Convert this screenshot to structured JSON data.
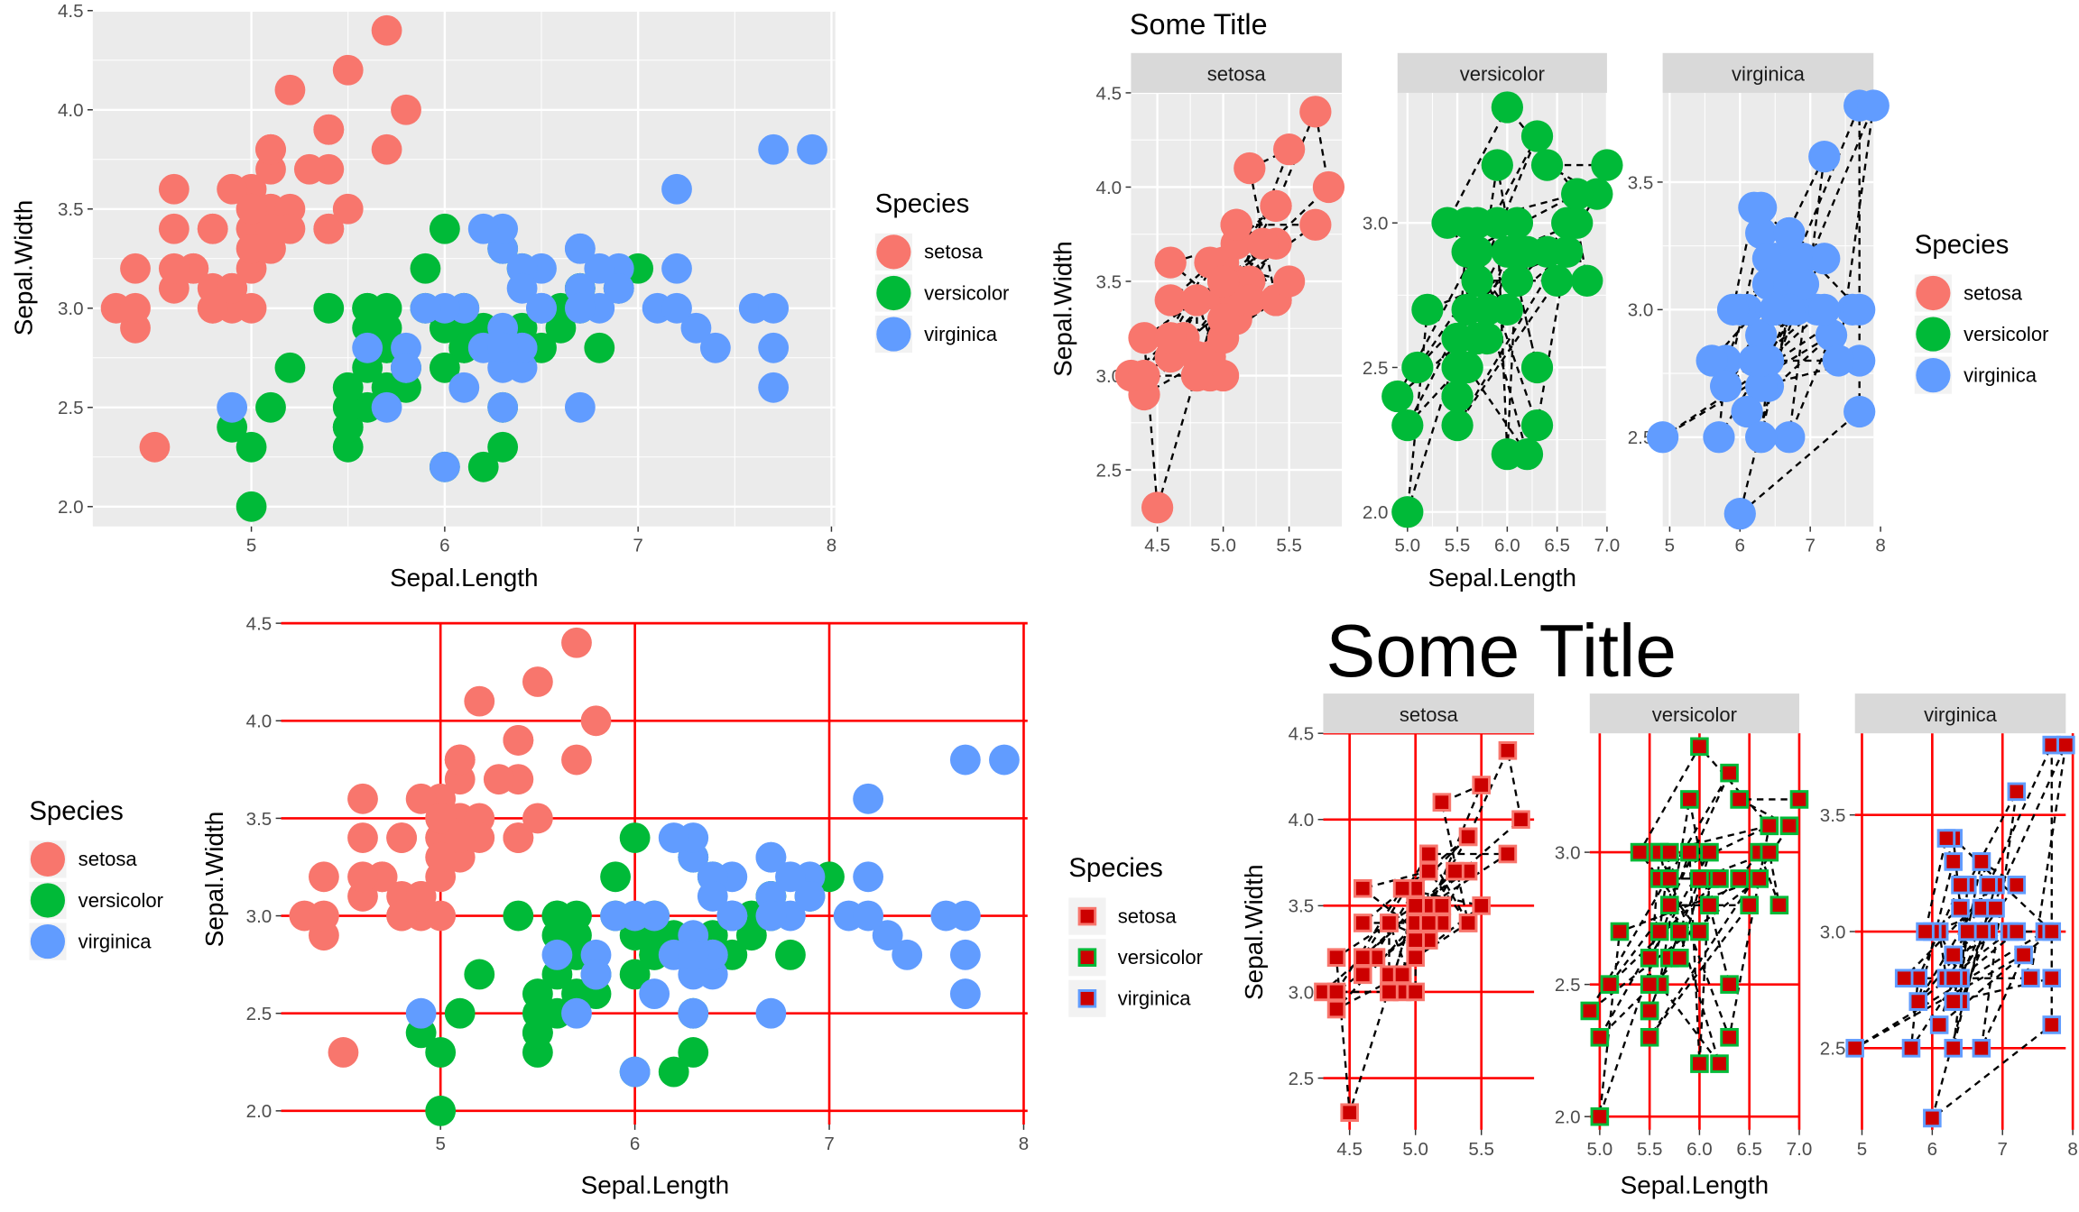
{
  "charts": [
    {
      "type": "scatter",
      "title": "",
      "xlabel": "Sepal.Length",
      "ylabel": "Sepal.Width",
      "xticks": [
        "5",
        "6",
        "7",
        "8"
      ],
      "yticks": [
        "2.0",
        "2.5",
        "3.0",
        "3.5",
        "4.0",
        "4.5"
      ],
      "legend_title": "Species",
      "legend_entries": [
        "setosa",
        "versicolor",
        "virginica"
      ],
      "grid_color": "#ffffff",
      "panel_background": "#ebebeb"
    },
    {
      "type": "scatter",
      "title": "Some Title",
      "facets": [
        "setosa",
        "versicolor",
        "virginica"
      ],
      "xlabel": "Sepal.Length",
      "ylabel": "Sepal.Width",
      "facet_xticks": [
        [
          "4.5",
          "5.0",
          "5.5"
        ],
        [
          "5.0",
          "5.5",
          "6.0",
          "6.5",
          "7.0"
        ],
        [
          "5",
          "6",
          "7",
          "8"
        ]
      ],
      "facet_yticks": [
        [
          "2.5",
          "3.0",
          "3.5",
          "4.0",
          "4.5"
        ],
        [
          "2.0",
          "2.5",
          "3.0"
        ],
        [
          "2.5",
          "3.0",
          "3.5"
        ]
      ],
      "legend_title": "Species",
      "legend_entries": [
        "setosa",
        "versicolor",
        "virginica"
      ],
      "connecting_line": "dashed black"
    },
    {
      "type": "scatter",
      "title": "",
      "xlabel": "Sepal.Length",
      "ylabel": "Sepal.Width",
      "xticks": [
        "5",
        "6",
        "7",
        "8"
      ],
      "yticks": [
        "2.0",
        "2.5",
        "3.0",
        "3.5",
        "4.0",
        "4.5"
      ],
      "legend_title": "Species",
      "legend_entries": [
        "setosa",
        "versicolor",
        "virginica"
      ],
      "second_legend_title": "Species",
      "second_legend_entries": [
        "setosa",
        "versicolor",
        "virginica"
      ],
      "grid_color": "#ff0000",
      "panel_background": "#ffffff"
    },
    {
      "type": "scatter",
      "title": "Some Title",
      "facets": [
        "setosa",
        "versicolor",
        "virginica"
      ],
      "xlabel": "Sepal.Length",
      "ylabel": "Sepal.Width",
      "facet_xticks": [
        [
          "4.5",
          "5.0",
          "5.5"
        ],
        [
          "5.0",
          "5.5",
          "6.0",
          "6.5",
          "7.0"
        ],
        [
          "5",
          "6",
          "7",
          "8"
        ]
      ],
      "facet_yticks": [
        [
          "2.5",
          "3.0",
          "3.5",
          "4.0",
          "4.5"
        ],
        [
          "2.0",
          "2.5",
          "3.0"
        ],
        [
          "2.5",
          "3.0",
          "3.5"
        ]
      ],
      "grid_color": "#ff0000",
      "marker": "square",
      "marker_fill": "#cc0000",
      "connecting_line": "dashed black"
    }
  ],
  "colors": {
    "setosa": "#f8766d",
    "versicolor": "#00ba38",
    "virginica": "#619cff",
    "grid_red": "#ff0000",
    "square_fill": "#cc0000",
    "strip": "#d9d9d9"
  },
  "chart_data": {
    "type": "scatter",
    "series": [
      {
        "name": "setosa",
        "points": [
          [
            5.1,
            3.5
          ],
          [
            4.9,
            3.0
          ],
          [
            4.7,
            3.2
          ],
          [
            4.6,
            3.1
          ],
          [
            5.0,
            3.6
          ],
          [
            5.4,
            3.9
          ],
          [
            4.6,
            3.4
          ],
          [
            5.0,
            3.4
          ],
          [
            4.4,
            2.9
          ],
          [
            4.9,
            3.1
          ],
          [
            5.4,
            3.7
          ],
          [
            4.8,
            3.4
          ],
          [
            4.8,
            3.0
          ],
          [
            4.3,
            3.0
          ],
          [
            5.8,
            4.0
          ],
          [
            5.7,
            4.4
          ],
          [
            5.4,
            3.9
          ],
          [
            5.1,
            3.5
          ],
          [
            5.7,
            3.8
          ],
          [
            5.1,
            3.8
          ],
          [
            5.4,
            3.4
          ],
          [
            5.1,
            3.7
          ],
          [
            4.6,
            3.6
          ],
          [
            5.1,
            3.3
          ],
          [
            4.8,
            3.4
          ],
          [
            5.0,
            3.0
          ],
          [
            5.0,
            3.4
          ],
          [
            5.2,
            3.5
          ],
          [
            5.2,
            3.4
          ],
          [
            4.7,
            3.2
          ],
          [
            4.8,
            3.1
          ],
          [
            5.4,
            3.4
          ],
          [
            5.2,
            4.1
          ],
          [
            5.5,
            4.2
          ],
          [
            4.9,
            3.1
          ],
          [
            5.0,
            3.2
          ],
          [
            5.5,
            3.5
          ],
          [
            4.9,
            3.6
          ],
          [
            4.4,
            3.0
          ],
          [
            5.1,
            3.4
          ],
          [
            5.0,
            3.5
          ],
          [
            4.5,
            2.3
          ],
          [
            4.4,
            3.2
          ],
          [
            5.0,
            3.5
          ],
          [
            5.1,
            3.8
          ],
          [
            4.8,
            3.0
          ],
          [
            5.1,
            3.8
          ],
          [
            4.6,
            3.2
          ],
          [
            5.3,
            3.7
          ],
          [
            5.0,
            3.3
          ]
        ]
      },
      {
        "name": "versicolor",
        "points": [
          [
            7.0,
            3.2
          ],
          [
            6.4,
            3.2
          ],
          [
            6.9,
            3.1
          ],
          [
            5.5,
            2.3
          ],
          [
            6.5,
            2.8
          ],
          [
            5.7,
            2.8
          ],
          [
            6.3,
            3.3
          ],
          [
            4.9,
            2.4
          ],
          [
            6.6,
            2.9
          ],
          [
            5.2,
            2.7
          ],
          [
            5.0,
            2.0
          ],
          [
            5.9,
            3.0
          ],
          [
            6.0,
            2.2
          ],
          [
            6.1,
            2.9
          ],
          [
            5.6,
            2.9
          ],
          [
            6.7,
            3.1
          ],
          [
            5.6,
            3.0
          ],
          [
            5.8,
            2.7
          ],
          [
            6.2,
            2.2
          ],
          [
            5.6,
            2.5
          ],
          [
            5.9,
            3.2
          ],
          [
            6.1,
            2.8
          ],
          [
            6.3,
            2.5
          ],
          [
            6.1,
            2.8
          ],
          [
            6.4,
            2.9
          ],
          [
            6.6,
            3.0
          ],
          [
            6.8,
            2.8
          ],
          [
            6.7,
            3.0
          ],
          [
            6.0,
            2.9
          ],
          [
            5.7,
            2.6
          ],
          [
            5.5,
            2.4
          ],
          [
            5.5,
            2.4
          ],
          [
            5.8,
            2.7
          ],
          [
            6.0,
            2.7
          ],
          [
            5.4,
            3.0
          ],
          [
            6.0,
            3.4
          ],
          [
            6.7,
            3.1
          ],
          [
            6.3,
            2.3
          ],
          [
            5.6,
            3.0
          ],
          [
            5.5,
            2.5
          ],
          [
            5.5,
            2.6
          ],
          [
            6.1,
            3.0
          ],
          [
            5.8,
            2.6
          ],
          [
            5.0,
            2.3
          ],
          [
            5.6,
            2.7
          ],
          [
            5.7,
            3.0
          ],
          [
            5.7,
            2.9
          ],
          [
            6.2,
            2.9
          ],
          [
            5.1,
            2.5
          ],
          [
            5.7,
            2.8
          ]
        ]
      },
      {
        "name": "virginica",
        "points": [
          [
            6.3,
            3.3
          ],
          [
            5.8,
            2.7
          ],
          [
            7.1,
            3.0
          ],
          [
            6.3,
            2.9
          ],
          [
            6.5,
            3.0
          ],
          [
            7.6,
            3.0
          ],
          [
            4.9,
            2.5
          ],
          [
            7.3,
            2.9
          ],
          [
            6.7,
            2.5
          ],
          [
            7.2,
            3.6
          ],
          [
            6.5,
            3.2
          ],
          [
            6.4,
            2.7
          ],
          [
            6.8,
            3.0
          ],
          [
            5.7,
            2.5
          ],
          [
            5.8,
            2.8
          ],
          [
            6.4,
            3.2
          ],
          [
            6.5,
            3.0
          ],
          [
            7.7,
            3.8
          ],
          [
            7.7,
            2.6
          ],
          [
            6.0,
            2.2
          ],
          [
            6.9,
            3.2
          ],
          [
            5.6,
            2.8
          ],
          [
            7.7,
            2.8
          ],
          [
            6.3,
            2.7
          ],
          [
            6.7,
            3.3
          ],
          [
            7.2,
            3.2
          ],
          [
            6.2,
            2.8
          ],
          [
            6.1,
            3.0
          ],
          [
            6.4,
            2.8
          ],
          [
            7.2,
            3.0
          ],
          [
            7.4,
            2.8
          ],
          [
            7.9,
            3.8
          ],
          [
            6.4,
            2.8
          ],
          [
            6.3,
            2.8
          ],
          [
            6.1,
            2.6
          ],
          [
            7.7,
            3.0
          ],
          [
            6.3,
            3.4
          ],
          [
            6.4,
            3.1
          ],
          [
            6.0,
            3.0
          ],
          [
            6.9,
            3.1
          ],
          [
            6.7,
            3.1
          ],
          [
            6.9,
            3.1
          ],
          [
            5.8,
            2.7
          ],
          [
            6.8,
            3.2
          ],
          [
            6.7,
            3.3
          ],
          [
            6.7,
            3.0
          ],
          [
            6.3,
            2.5
          ],
          [
            6.5,
            3.0
          ],
          [
            6.2,
            3.4
          ],
          [
            5.9,
            3.0
          ]
        ]
      }
    ]
  }
}
